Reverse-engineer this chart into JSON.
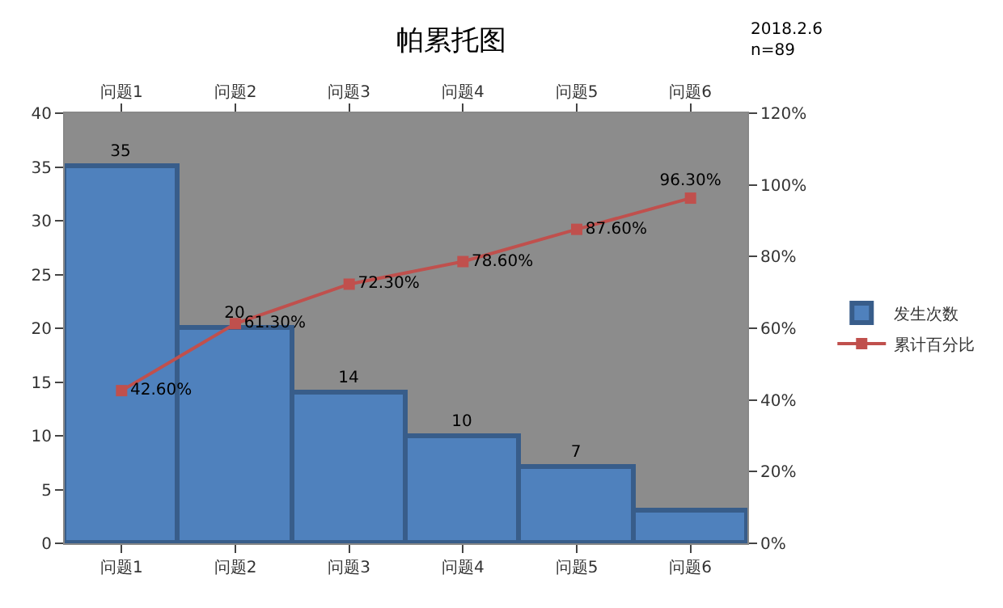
{
  "chart_data": {
    "type": "bar",
    "title": "帕累托图",
    "categories": [
      "问题1",
      "问题2",
      "问题3",
      "问题4",
      "问题5",
      "问题6"
    ],
    "series": [
      {
        "name": "发生次数",
        "color": "#4f81bd",
        "values": [
          35,
          20,
          14,
          10,
          7,
          3
        ],
        "value_labels": [
          "35",
          "20",
          "14",
          "10",
          "7",
          null
        ]
      },
      {
        "name": "累计百分比",
        "type": "line",
        "axis": "y2",
        "color": "#c0504d",
        "marker": "square",
        "values": [
          42.6,
          61.3,
          72.3,
          78.6,
          87.6,
          96.3
        ],
        "value_labels": [
          "42.60%",
          "61.30%",
          "72.30%",
          "78.60%",
          "87.60%",
          "96.30%"
        ]
      }
    ],
    "ylim": [
      0,
      40
    ],
    "yticks": [
      0,
      5,
      10,
      15,
      20,
      25,
      30,
      35,
      40
    ],
    "y2lim": [
      0,
      120
    ],
    "y2ticks": [
      {
        "value": 0,
        "label": "0%"
      },
      {
        "value": 20,
        "label": "20%"
      },
      {
        "value": 40,
        "label": "40%"
      },
      {
        "value": 60,
        "label": "60%"
      },
      {
        "value": 80,
        "label": "80%"
      },
      {
        "value": 100,
        "label": "100%"
      },
      {
        "value": 120,
        "label": "120%"
      }
    ],
    "annotations": [
      "2018.2.6\nn=89"
    ],
    "grid": false,
    "legend": "right"
  }
}
